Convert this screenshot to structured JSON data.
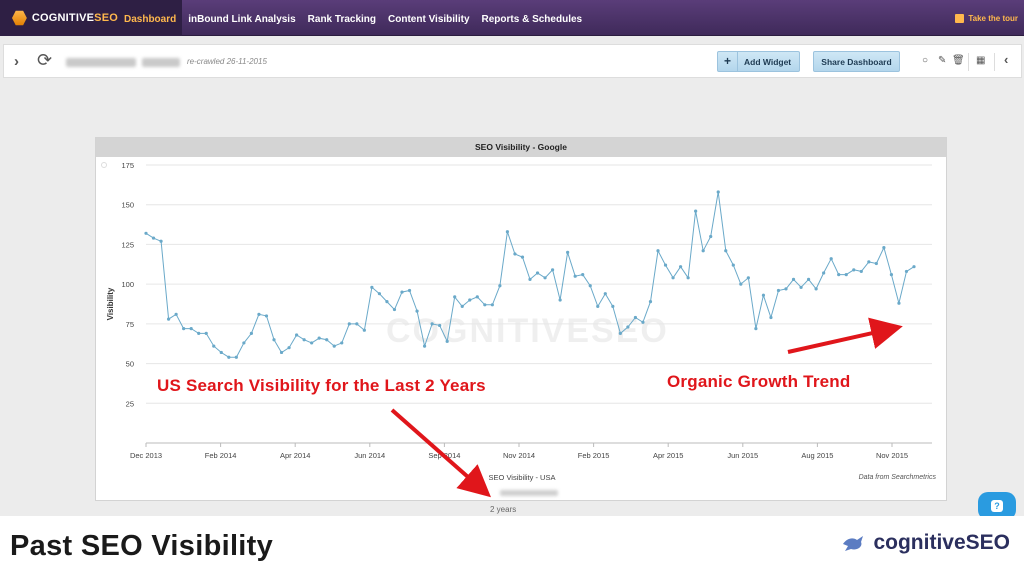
{
  "app": {
    "logo_prefix": "COGNITIVE",
    "logo_suffix": "SEO"
  },
  "nav": {
    "items": [
      {
        "label": "Dashboard",
        "active": true
      },
      {
        "label": "inBound Link Analysis",
        "active": false
      },
      {
        "label": "Rank Tracking",
        "active": false
      },
      {
        "label": "Content Visibility",
        "active": false
      },
      {
        "label": "Reports & Schedules",
        "active": false
      }
    ],
    "tour_label": "Take the tour"
  },
  "toolbar": {
    "recrawled": "re-crawled 26-11-2015",
    "add_widget_label": "Add Widget",
    "share_label": "Share Dashboard"
  },
  "widget": {
    "title": "SEO Visibility - Google",
    "time_range": "2 years"
  },
  "chart_data": {
    "type": "line",
    "title": "SEO Visibility - Google",
    "ylabel": "Visibility",
    "xlabel": "SEO Visibility - USA",
    "source": "Data from Searchmetrics",
    "watermark": "COGNITIVESEO",
    "ylim": [
      0,
      175
    ],
    "yticks": [
      25,
      50,
      75,
      100,
      125,
      150,
      175
    ],
    "xticks": [
      "Dec 2013",
      "Feb 2014",
      "Apr 2014",
      "Jun 2014",
      "Sep 2014",
      "Nov 2014",
      "Feb 2015",
      "Apr 2015",
      "Jun 2015",
      "Aug 2015",
      "Nov 2015"
    ],
    "grid": true,
    "color": "#6aa9c9",
    "series": [
      {
        "values": [
          132,
          129,
          127,
          78,
          81,
          72,
          72,
          69,
          69,
          61,
          57,
          54,
          54,
          63,
          69,
          81,
          80,
          65,
          57,
          60,
          68,
          65,
          63,
          66,
          65,
          61,
          63,
          75,
          75,
          71,
          98,
          94,
          89,
          84,
          95,
          96,
          83,
          61,
          75,
          74,
          64,
          92,
          86,
          90,
          92,
          87,
          87,
          99,
          133,
          119,
          117,
          103,
          107,
          104,
          109,
          90,
          120,
          105,
          106,
          99,
          86,
          94,
          86,
          69,
          73,
          79,
          76,
          89,
          121,
          112,
          104,
          111,
          104,
          146,
          121,
          130,
          158,
          121,
          112,
          100,
          104,
          72,
          93,
          79,
          96,
          97,
          103,
          98,
          103,
          97,
          107,
          116,
          106,
          106,
          109,
          108,
          114,
          113,
          123,
          106,
          88,
          108,
          111
        ]
      }
    ]
  },
  "annotations": {
    "left": "US Search Visibility for the Last 2 Years",
    "right": "Organic Growth Trend"
  },
  "footer": {
    "title": "Past SEO Visibility",
    "brand": "cognitiveSEO"
  }
}
